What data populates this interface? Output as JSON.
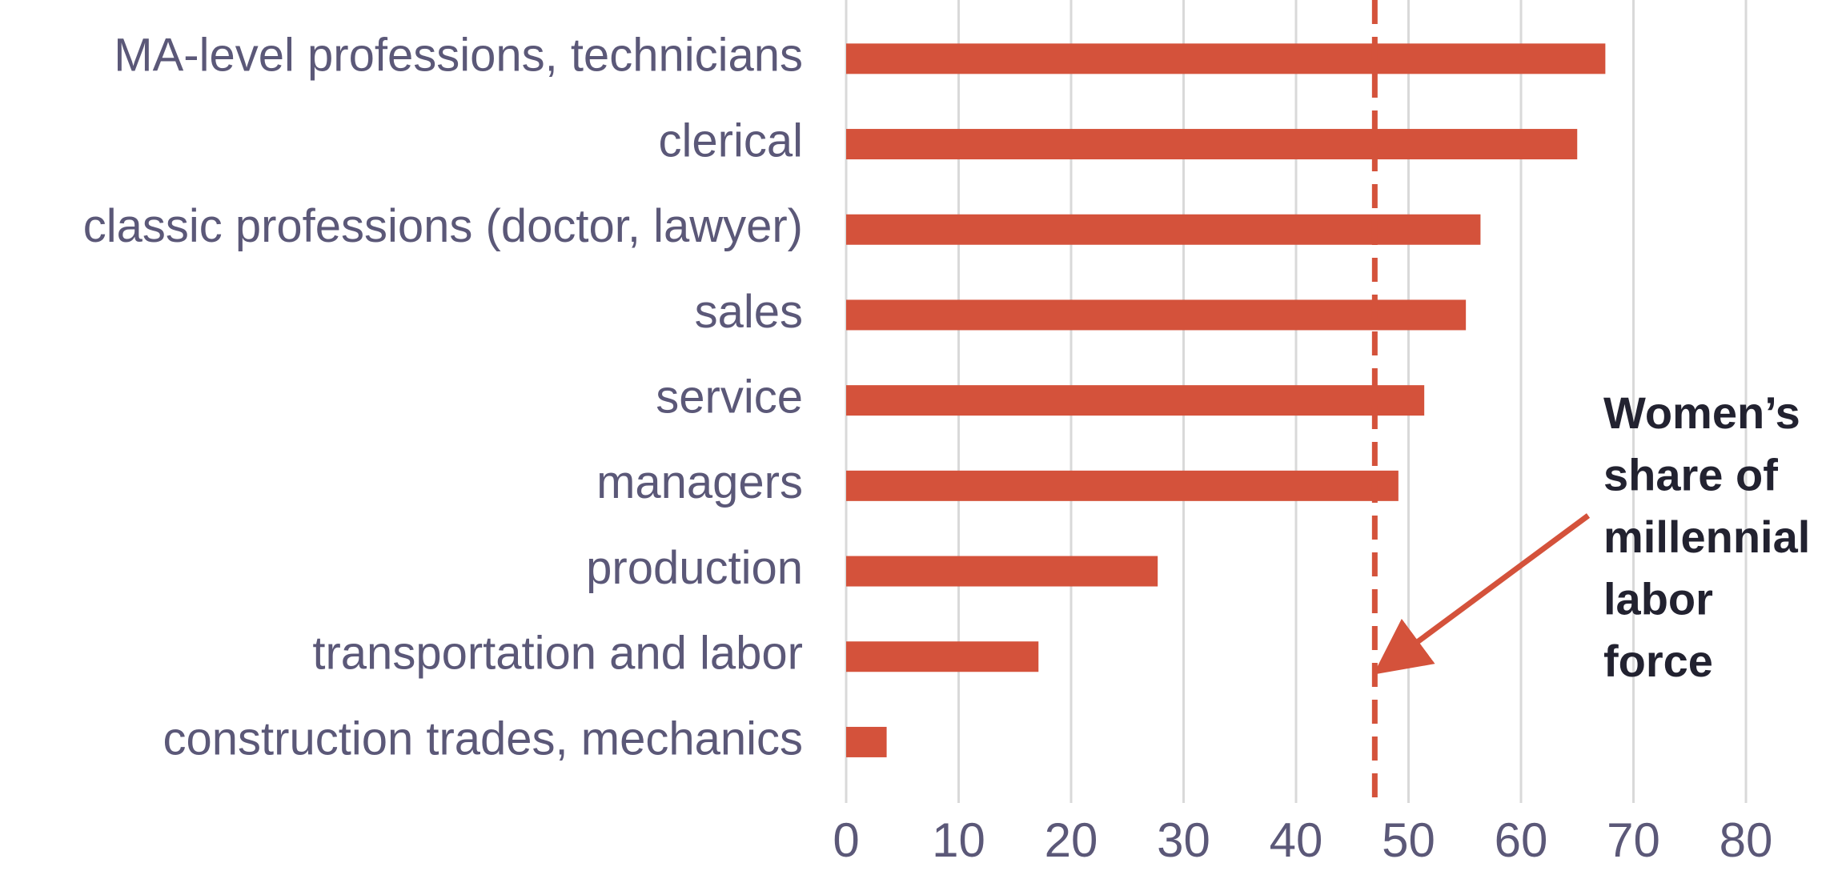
{
  "chart_data": {
    "type": "bar",
    "orientation": "horizontal",
    "categories": [
      "MA-level professions, technicians",
      "clerical",
      "classic professions (doctor, lawyer)",
      "sales",
      "service",
      "managers",
      "production",
      "transportation and labor",
      "construction trades, mechanics"
    ],
    "values": [
      67.5,
      65,
      56.4,
      55.1,
      51.4,
      49.1,
      27.7,
      17.1,
      3.6
    ],
    "color": "#d4523b",
    "xlim": [
      0,
      80
    ],
    "xticks": [
      0,
      10,
      20,
      30,
      40,
      50,
      60,
      70,
      80
    ],
    "grid": true,
    "reference_line": 47,
    "annotation": [
      "Women’s",
      "share of",
      "millennial",
      "labor",
      "force"
    ]
  }
}
